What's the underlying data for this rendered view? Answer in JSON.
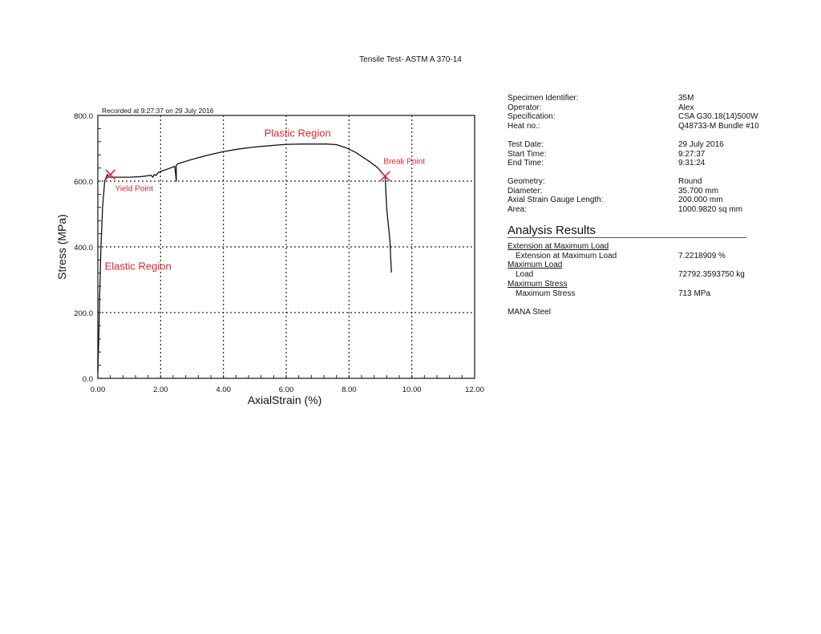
{
  "page": {
    "title": "Tensile Test- ASTM A 370-14"
  },
  "chart_data": {
    "type": "line",
    "title": "Tensile Test- ASTM A 370-14",
    "subtitle": "Recorded at 9:27:37 on 29 July 2016",
    "xlabel": "AxialStrain (%)",
    "ylabel": "Stress (MPa)",
    "xlim": [
      0,
      12
    ],
    "ylim": [
      0,
      800
    ],
    "xticks": [
      "0.00",
      "2.00",
      "4.00",
      "6.00",
      "8.00",
      "10.00",
      "12.00"
    ],
    "yticks": [
      "0.0",
      "200.0",
      "400.0",
      "600.0",
      "800.0"
    ],
    "grid": true,
    "grid_style": "dotted",
    "series": [
      {
        "name": "Stress-Strain",
        "color": "#111111",
        "x": [
          0.0,
          0.03,
          0.06,
          0.1,
          0.15,
          0.22,
          0.3,
          0.36,
          0.6,
          1.0,
          1.4,
          1.7,
          1.75,
          1.8,
          1.85,
          1.9,
          2.0,
          2.2,
          2.45,
          2.5,
          2.5,
          2.52,
          2.55,
          3.0,
          3.5,
          4.0,
          4.5,
          5.0,
          5.5,
          6.0,
          6.5,
          7.0,
          7.3,
          7.6,
          7.9,
          8.2,
          8.6,
          8.9,
          9.15,
          9.2,
          9.3,
          9.35
        ],
        "y": [
          20,
          120,
          250,
          400,
          520,
          600,
          620,
          612,
          612,
          612,
          614,
          618,
          612,
          620,
          617,
          624,
          630,
          636,
          645,
          600,
          648,
          651,
          653,
          666,
          679,
          690,
          698,
          704,
          708,
          712,
          713,
          713,
          713,
          711,
          702,
          688,
          663,
          642,
          615,
          517,
          420,
          322
        ]
      }
    ],
    "annotations": [
      {
        "text": "Plastic Region",
        "x": 5.3,
        "y": 735,
        "color": "#e0262f"
      },
      {
        "text": "Yield Point",
        "x": 0.55,
        "y": 570,
        "color": "#e0262f",
        "marker": {
          "x": 0.4,
          "y": 620,
          "shape": "x"
        }
      },
      {
        "text": "Break Point",
        "x": 9.1,
        "y": 652,
        "color": "#e0262f",
        "marker": {
          "x": 9.15,
          "y": 615,
          "shape": "x"
        }
      },
      {
        "text": "Elastic Region",
        "x": 0.22,
        "y": 330,
        "color": "#e0262f"
      }
    ]
  },
  "specimen": {
    "groups": [
      [
        {
          "label": "Specimen Identifier:",
          "value": "35M"
        },
        {
          "label": "Operator:",
          "value": "Alex"
        },
        {
          "label": "Specification:",
          "value": "CSA G30.18(14)500W"
        },
        {
          "label": "Heat no.:",
          "value": "Q48733-M Bundle #10"
        }
      ],
      [
        {
          "label": "Test Date:",
          "value": "29 July 2016"
        },
        {
          "label": "Start Time:",
          "value": "9:27:37"
        },
        {
          "label": "End Time:",
          "value": "9:31:24"
        }
      ],
      [
        {
          "label": "Geometry:",
          "value": "Round"
        },
        {
          "label": "Diameter:",
          "value": "35.700 mm"
        },
        {
          "label": "Axial Strain Gauge Length:",
          "value": "200.000 mm"
        },
        {
          "label": "Area:",
          "value": "1000.9820 sq mm"
        }
      ]
    ]
  },
  "analysis": {
    "title": "Analysis Results",
    "sections": [
      {
        "heading": "Extension at Maximum Load",
        "label": "Extension at Maximum Load",
        "value": "7.2218909 %"
      },
      {
        "heading": "Maximum Load",
        "label": "Load",
        "value": "72792.3593750 kg"
      },
      {
        "heading": "Maximum Stress",
        "label": "Maximum Stress",
        "value": "713 MPa"
      }
    ],
    "footer": "MANA Steel"
  }
}
